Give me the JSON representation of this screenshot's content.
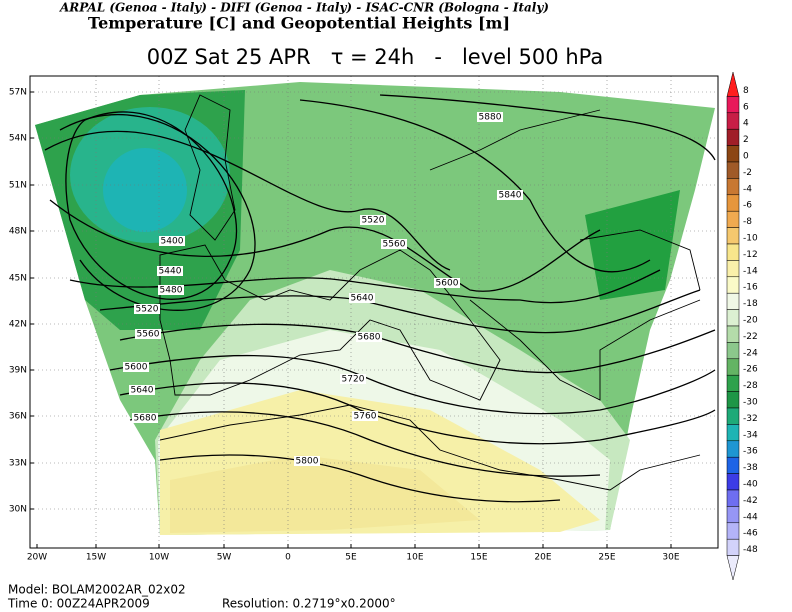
{
  "header": {
    "line1": "ARPAL (Genoa - Italy)  -  DIFI (Genoa - Italy)  -  ISAC-CNR (Bologna - Italy)",
    "line2": "Temperature [C] and Geopotential Heights [m]"
  },
  "title": "00Z Sat 25 APR   τ = 24h   -   level 500 hPa",
  "lat_labels": [
    "57N",
    "54N",
    "51N",
    "48N",
    "45N",
    "42N",
    "39N",
    "36N",
    "33N",
    "30N"
  ],
  "lon_labels": [
    "20W",
    "15W",
    "10W",
    "5W",
    "0",
    "5E",
    "10E",
    "15E",
    "20E",
    "25E",
    "30E"
  ],
  "contour_labels": [
    5880,
    5840,
    5520,
    5560,
    5600,
    5400,
    5440,
    5480,
    5520,
    5560,
    5600,
    5640,
    5680,
    5640,
    5680,
    5720,
    5760,
    5800
  ],
  "colorbar": {
    "labels": [
      8,
      6,
      4,
      2,
      0,
      -2,
      -4,
      -6,
      -8,
      -10,
      -12,
      -14,
      -16,
      -18,
      -20,
      -22,
      -24,
      -26,
      -28,
      -30,
      -32,
      -34,
      -36,
      -38,
      -40,
      -42,
      -44,
      -46,
      -48
    ]
  },
  "footer": {
    "model": "Model: BOLAM2002AR_02x02",
    "time": "Time 0: 00Z24APR2009",
    "resolution": "Resolution: 0.2719°x0.2000°"
  }
}
